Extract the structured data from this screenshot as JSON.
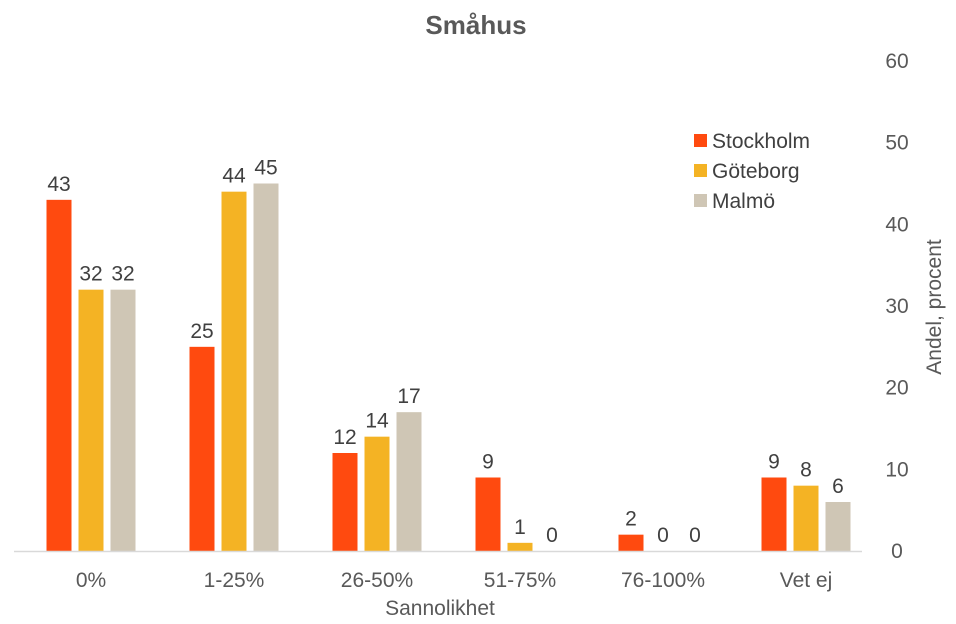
{
  "chart_data": {
    "type": "bar",
    "title": "Småhus",
    "xlabel": "Sannolikhet",
    "ylabel": "Andel, procent",
    "categories": [
      "0%",
      "1-25%",
      "26-50%",
      "51-75%",
      "76-100%",
      "Vet ej"
    ],
    "series": [
      {
        "name": "Stockholm",
        "color": "#FF4A0F",
        "values": [
          43,
          25,
          12,
          9,
          2,
          9
        ]
      },
      {
        "name": "Göteborg",
        "color": "#F4B324",
        "values": [
          32,
          44,
          14,
          1,
          0,
          8
        ]
      },
      {
        "name": "Malmö",
        "color": "#CFC6B5",
        "values": [
          32,
          45,
          17,
          0,
          0,
          6
        ]
      }
    ],
    "data_labels": [
      [
        "43",
        "32",
        "32"
      ],
      [
        "25",
        "44",
        "45"
      ],
      [
        "12",
        "14",
        "17"
      ],
      [
        "9",
        "1",
        "0"
      ],
      [
        "2",
        "0",
        "0"
      ],
      [
        "9",
        "8",
        "6"
      ]
    ],
    "ylim": [
      0,
      60
    ],
    "yticks": [
      0,
      10,
      20,
      30,
      40,
      50,
      60
    ],
    "y_axis_side": "right",
    "grid": false,
    "legend_position": "top-right"
  }
}
